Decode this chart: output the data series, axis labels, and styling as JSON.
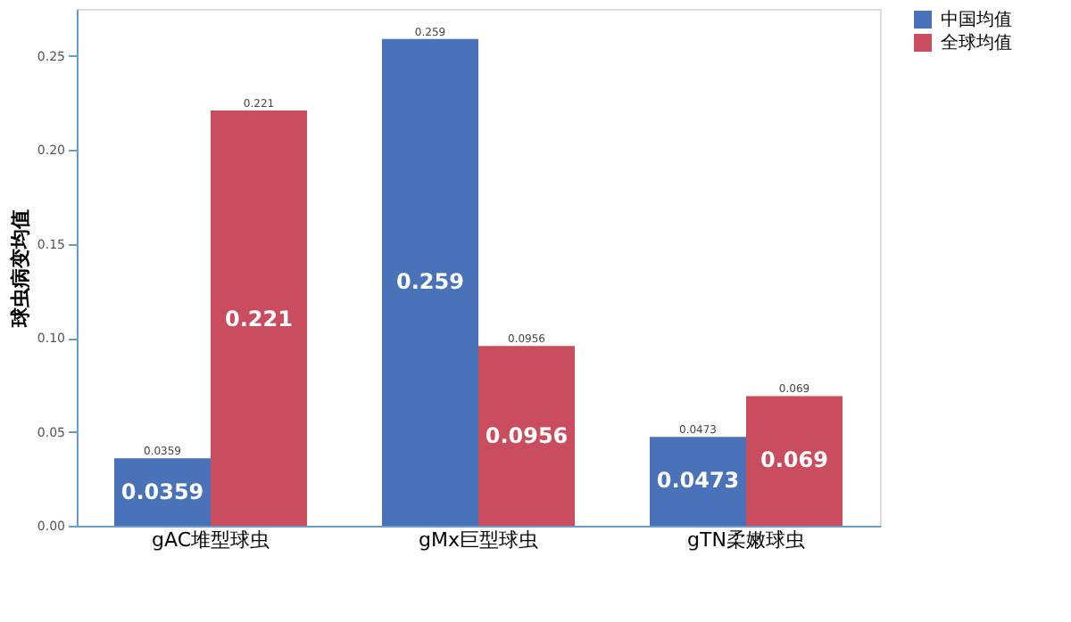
{
  "chart_data": {
    "type": "bar",
    "ylabel": "球虫病变均值",
    "categories": [
      "gAC堆型球虫",
      "gMx巨型球虫",
      "gTN柔嫩球虫"
    ],
    "series": [
      {
        "name": "中国均值",
        "color": "#4a72b8",
        "values": [
          0.0359,
          0.259,
          0.0473
        ]
      },
      {
        "name": "全球均值",
        "color": "#c94d5f",
        "values": [
          0.221,
          0.0956,
          0.069
        ]
      }
    ],
    "ylim": [
      0,
      0.275
    ],
    "yticks": [
      {
        "value": 0,
        "label": "0.00"
      },
      {
        "value": 0.05,
        "label": "0.05"
      },
      {
        "value": 0.1,
        "label": "0.10"
      },
      {
        "value": 0.15,
        "label": "0.15"
      },
      {
        "value": 0.2,
        "label": "0.20"
      },
      {
        "value": 0.25,
        "label": "0.25"
      }
    ],
    "annotations": [
      {
        "text": "0.0359",
        "x": "gAC堆型球虫",
        "y": 0.018
      },
      {
        "text": "0.221",
        "x": "gAC堆型球虫",
        "y": 0.11
      },
      {
        "text": "0.259",
        "x": "gMx巨型球虫",
        "y": 0.13
      },
      {
        "text": "0.0956",
        "x": "gMx巨型球虫",
        "y": 0.048
      },
      {
        "text": "0.0473",
        "x": "gTN柔嫩球虫",
        "y": 0.024
      },
      {
        "text": "0.069",
        "x": "gTN柔嫩球虫",
        "y": 0.035
      }
    ],
    "grid": false,
    "legend": "top right",
    "data_labels": true
  }
}
